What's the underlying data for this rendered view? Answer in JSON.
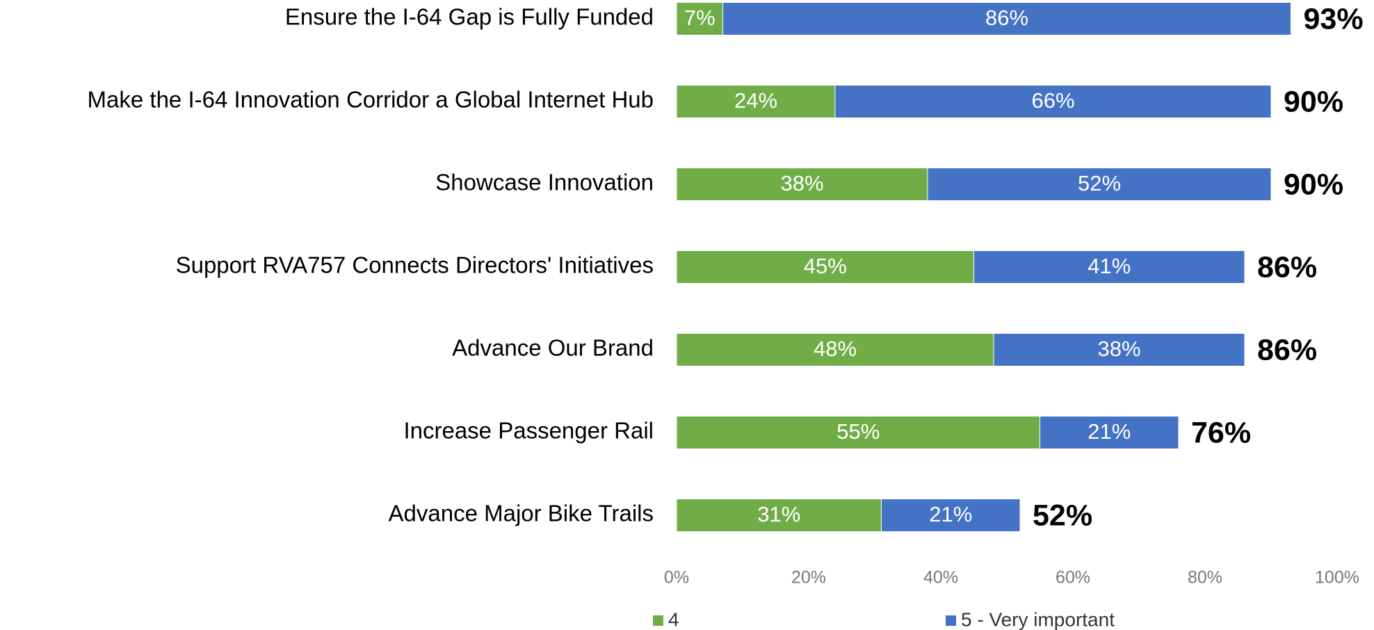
{
  "chart_data": {
    "type": "stacked-bar-horizontal",
    "categories": [
      "Ensure the I-64 Gap is Fully Funded",
      "Make the I-64 Innovation Corridor a Global Internet Hub",
      "Showcase Innovation",
      "Support RVA757 Connects Directors' Initiatives",
      "Advance Our Brand",
      "Increase Passenger Rail",
      "Advance Major Bike Trails"
    ],
    "series": [
      {
        "name": "4",
        "color": "#70ad47",
        "values": [
          7,
          24,
          38,
          45,
          48,
          55,
          31
        ],
        "value_labels": [
          "7%",
          "24%",
          "38%",
          "45%",
          "48%",
          "55%",
          "31%"
        ]
      },
      {
        "name": "5 - Very important",
        "color": "#4472c4",
        "values": [
          86,
          66,
          52,
          41,
          38,
          21,
          21
        ],
        "value_labels": [
          "86%",
          "66%",
          "52%",
          "41%",
          "38%",
          "21%",
          "21%"
        ]
      }
    ],
    "totals": [
      93,
      90,
      90,
      86,
      86,
      76,
      52
    ],
    "total_labels": [
      "93%",
      "90%",
      "90%",
      "86%",
      "86%",
      "76%",
      "52%"
    ],
    "xlim": [
      0,
      100
    ],
    "xticks": [
      {
        "value": 0,
        "label": "0%"
      },
      {
        "value": 20,
        "label": "20%"
      },
      {
        "value": 40,
        "label": "40%"
      },
      {
        "value": 60,
        "label": "60%"
      },
      {
        "value": 80,
        "label": "80%"
      },
      {
        "value": 100,
        "label": "100%"
      }
    ],
    "grid": false,
    "legend": "bottom"
  }
}
